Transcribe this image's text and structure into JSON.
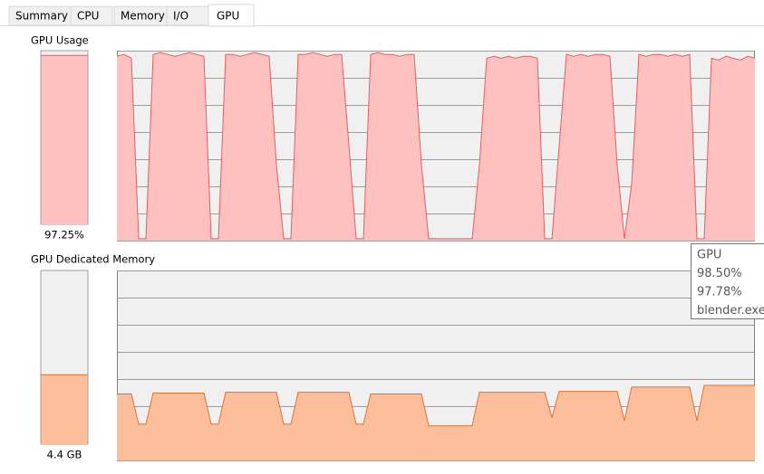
{
  "tabs": [
    "Summary",
    "CPU",
    "Memory",
    "I/O",
    "GPU"
  ],
  "gpu_usage": {
    "title": "GPU Usage",
    "value": 97.25,
    "value_label": "97.25%",
    "ylim": [
      0,
      100
    ],
    "color": "#ffc0c0",
    "line_color": "#e06060",
    "history": [
      97,
      98,
      96,
      1,
      1,
      98,
      99,
      98,
      97,
      98,
      99,
      98,
      97,
      1,
      1,
      98,
      98,
      97,
      98,
      99,
      98,
      97,
      40,
      1,
      1,
      98,
      98,
      99,
      98,
      97,
      98,
      98,
      50,
      1,
      1,
      98,
      99,
      98,
      98,
      97,
      98,
      98,
      40,
      1,
      1,
      1,
      1,
      1,
      1,
      1,
      40,
      96,
      97,
      96,
      97,
      96,
      97,
      97,
      96,
      1,
      1,
      50,
      98,
      97,
      98,
      97,
      98,
      98,
      97,
      40,
      1,
      30,
      98,
      97,
      98,
      98,
      97,
      98,
      97,
      98,
      1,
      1,
      96,
      95,
      97,
      96,
      95,
      97,
      96
    ]
  },
  "gpu_memory": {
    "title": "GPU Dedicated Memory",
    "value": 4.4,
    "value_label": "4.4 GB",
    "ylim": [
      0,
      11
    ],
    "color": "#fdbf9b",
    "line_color": "#e07030",
    "history": [
      3.85,
      3.85,
      3.85,
      2.1,
      2.1,
      3.9,
      3.9,
      3.9,
      3.9,
      3.9,
      3.9,
      3.9,
      3.9,
      2.1,
      2.1,
      3.95,
      3.95,
      3.95,
      3.95,
      3.95,
      3.95,
      3.95,
      3.95,
      2.1,
      2.1,
      3.95,
      3.95,
      3.95,
      3.95,
      3.95,
      3.95,
      3.95,
      3.95,
      2.1,
      2.1,
      3.85,
      3.85,
      3.85,
      3.85,
      3.85,
      3.85,
      3.85,
      3.85,
      2.0,
      2.0,
      2.0,
      2.0,
      2.0,
      2.0,
      2.0,
      3.95,
      3.95,
      3.95,
      3.95,
      3.95,
      3.95,
      3.95,
      3.95,
      3.95,
      3.95,
      2.5,
      4.0,
      4.0,
      4.0,
      4.0,
      4.0,
      4.0,
      4.0,
      4.0,
      4.0,
      2.3,
      4.25,
      4.25,
      4.25,
      4.25,
      4.25,
      4.25,
      4.25,
      4.25,
      4.25,
      2.3,
      4.35,
      4.35,
      4.35,
      4.35,
      4.35,
      4.35,
      4.35,
      4.35
    ]
  },
  "tooltip": {
    "lines": [
      "GPU",
      "98.50%",
      "97.78%",
      "blender.exe"
    ]
  }
}
